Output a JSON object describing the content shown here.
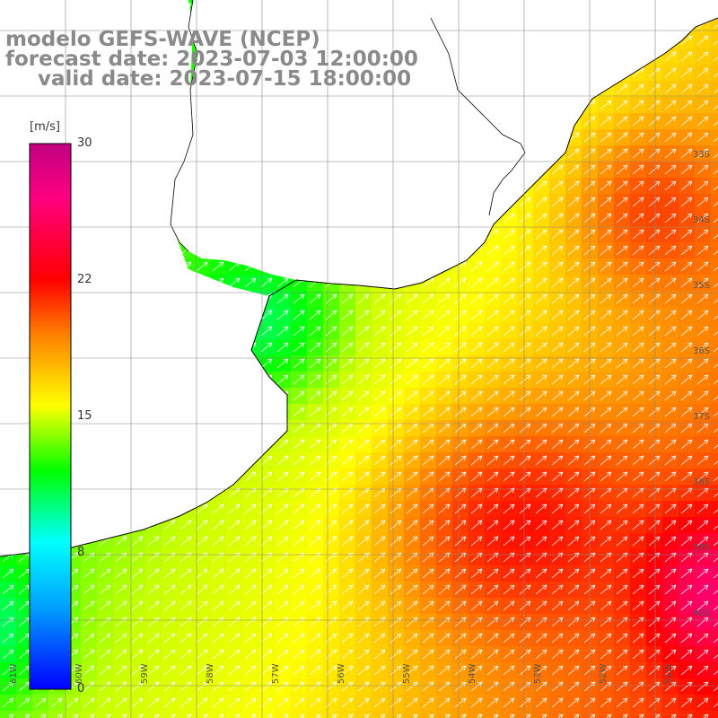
{
  "title": {
    "line1": "modelo GEFS-WAVE (NCEP)",
    "line2": "forecast date: 2023-07-03 12:00:00",
    "line3": "valid date: 2023-07-15 18:00:00"
  },
  "colorbar": {
    "unit": "[m/s]",
    "ticks": [
      "30",
      "22",
      "15",
      "8",
      "0"
    ],
    "colors": [
      "#0000ff",
      "#00a0ff",
      "#00ffff",
      "#00ff00",
      "#80ff00",
      "#ffff00",
      "#ff8000",
      "#ff0000",
      "#ff0080",
      "#c00080"
    ]
  },
  "lat_labels": [
    "33S",
    "34S",
    "35S",
    "36S",
    "37S",
    "38S",
    "39S",
    "40S"
  ],
  "lon_labels": [
    "61W",
    "60W",
    "59W",
    "58W",
    "57W",
    "56W",
    "55W",
    "54W",
    "53W",
    "52W",
    "51W"
  ],
  "colors": {
    "land": "#ffffff",
    "coast": "#000000",
    "grid": "#888888",
    "arrow": "#ffffff",
    "title": "#8a8a8a"
  }
}
